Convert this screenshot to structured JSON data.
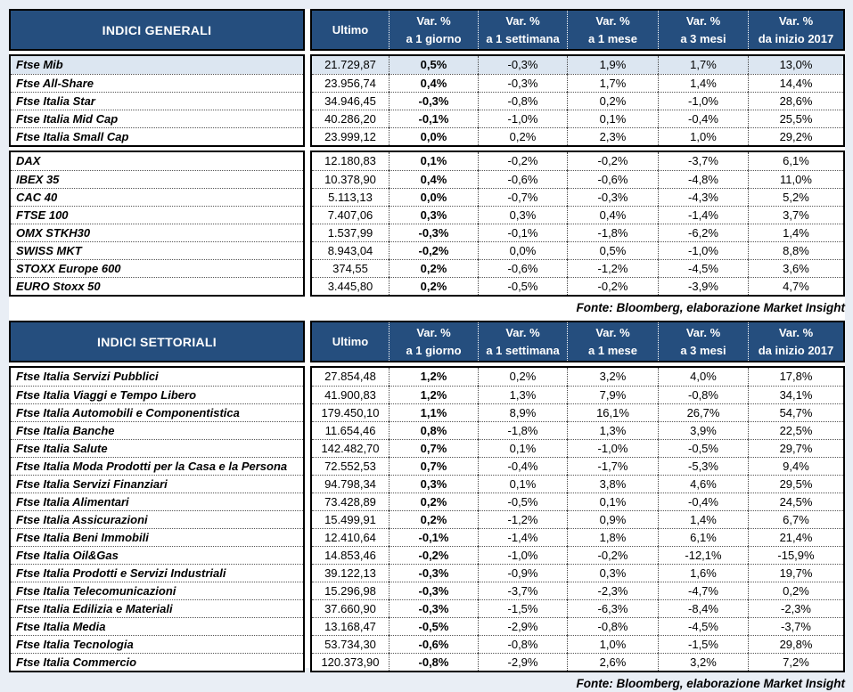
{
  "colors": {
    "header_bg": "#254e7e",
    "header_text": "#ffffff",
    "highlight_row_bg": "#dce6f1",
    "border": "#000000",
    "page_frame": "#e9eef5"
  },
  "columns": {
    "ultimo": "Ultimo",
    "var_label": "Var. %",
    "periods": [
      "a 1 giorno",
      "a 1 settimana",
      "a 1 mese",
      "a 3 mesi",
      "da inizio 2017"
    ]
  },
  "source_note": "Fonte: Bloomberg, elaborazione Market Insight",
  "general_table": {
    "title": "INDICI GENERALI",
    "groups": [
      {
        "rows": [
          {
            "name": "Ftse Mib",
            "ultimo": "21.729,87",
            "d1": "0,5%",
            "w1": "-0,3%",
            "m1": "1,9%",
            "m3": "1,7%",
            "ytd": "13,0%",
            "highlight": true
          },
          {
            "name": "Ftse All-Share",
            "ultimo": "23.956,74",
            "d1": "0,4%",
            "w1": "-0,3%",
            "m1": "1,7%",
            "m3": "1,4%",
            "ytd": "14,4%"
          },
          {
            "name": "Ftse Italia Star",
            "ultimo": "34.946,45",
            "d1": "-0,3%",
            "w1": "-0,8%",
            "m1": "0,2%",
            "m3": "-1,0%",
            "ytd": "28,6%"
          },
          {
            "name": "Ftse Italia Mid Cap",
            "ultimo": "40.286,20",
            "d1": "-0,1%",
            "w1": "-1,0%",
            "m1": "0,1%",
            "m3": "-0,4%",
            "ytd": "25,5%"
          },
          {
            "name": "Ftse Italia Small Cap",
            "ultimo": "23.999,12",
            "d1": "0,0%",
            "w1": "0,2%",
            "m1": "2,3%",
            "m3": "1,0%",
            "ytd": "29,2%"
          }
        ]
      },
      {
        "rows": [
          {
            "name": "DAX",
            "ultimo": "12.180,83",
            "d1": "0,1%",
            "w1": "-0,2%",
            "m1": "-0,2%",
            "m3": "-3,7%",
            "ytd": "6,1%"
          },
          {
            "name": "IBEX 35",
            "ultimo": "10.378,90",
            "d1": "0,4%",
            "w1": "-0,6%",
            "m1": "-0,6%",
            "m3": "-4,8%",
            "ytd": "11,0%"
          },
          {
            "name": "CAC 40",
            "ultimo": "5.113,13",
            "d1": "0,0%",
            "w1": "-0,7%",
            "m1": "-0,3%",
            "m3": "-4,3%",
            "ytd": "5,2%"
          },
          {
            "name": "FTSE 100",
            "ultimo": "7.407,06",
            "d1": "0,3%",
            "w1": "0,3%",
            "m1": "0,4%",
            "m3": "-1,4%",
            "ytd": "3,7%"
          },
          {
            "name": "OMX STKH30",
            "ultimo": "1.537,99",
            "d1": "-0,3%",
            "w1": "-0,1%",
            "m1": "-1,8%",
            "m3": "-6,2%",
            "ytd": "1,4%"
          },
          {
            "name": "SWISS MKT",
            "ultimo": "8.943,04",
            "d1": "-0,2%",
            "w1": "0,0%",
            "m1": "0,5%",
            "m3": "-1,0%",
            "ytd": "8,8%"
          },
          {
            "name": "STOXX Europe 600",
            "ultimo": "374,55",
            "d1": "0,2%",
            "w1": "-0,6%",
            "m1": "-1,2%",
            "m3": "-4,5%",
            "ytd": "3,6%"
          },
          {
            "name": "EURO Stoxx 50",
            "ultimo": "3.445,80",
            "d1": "0,2%",
            "w1": "-0,5%",
            "m1": "-0,2%",
            "m3": "-3,9%",
            "ytd": "4,7%"
          }
        ]
      }
    ]
  },
  "sector_table": {
    "title": "INDICI SETTORIALI",
    "groups": [
      {
        "rows": [
          {
            "name": "Ftse Italia Servizi Pubblici",
            "ultimo": "27.854,48",
            "d1": "1,2%",
            "w1": "0,2%",
            "m1": "3,2%",
            "m3": "4,0%",
            "ytd": "17,8%"
          },
          {
            "name": "Ftse Italia Viaggi e Tempo Libero",
            "ultimo": "41.900,83",
            "d1": "1,2%",
            "w1": "1,3%",
            "m1": "7,9%",
            "m3": "-0,8%",
            "ytd": "34,1%"
          },
          {
            "name": "Ftse Italia Automobili e Componentistica",
            "ultimo": "179.450,10",
            "d1": "1,1%",
            "w1": "8,9%",
            "m1": "16,1%",
            "m3": "26,7%",
            "ytd": "54,7%"
          },
          {
            "name": "Ftse Italia Banche",
            "ultimo": "11.654,46",
            "d1": "0,8%",
            "w1": "-1,8%",
            "m1": "1,3%",
            "m3": "3,9%",
            "ytd": "22,5%"
          },
          {
            "name": "Ftse Italia Salute",
            "ultimo": "142.482,70",
            "d1": "0,7%",
            "w1": "0,1%",
            "m1": "-1,0%",
            "m3": "-0,5%",
            "ytd": "29,7%"
          },
          {
            "name": "Ftse Italia Moda Prodotti per la Casa e la Persona",
            "ultimo": "72.552,53",
            "d1": "0,7%",
            "w1": "-0,4%",
            "m1": "-1,7%",
            "m3": "-5,3%",
            "ytd": "9,4%"
          },
          {
            "name": "Ftse Italia Servizi Finanziari",
            "ultimo": "94.798,34",
            "d1": "0,3%",
            "w1": "0,1%",
            "m1": "3,8%",
            "m3": "4,6%",
            "ytd": "29,5%"
          },
          {
            "name": "Ftse Italia Alimentari",
            "ultimo": "73.428,89",
            "d1": "0,2%",
            "w1": "-0,5%",
            "m1": "0,1%",
            "m3": "-0,4%",
            "ytd": "24,5%"
          },
          {
            "name": "Ftse Italia Assicurazioni",
            "ultimo": "15.499,91",
            "d1": "0,2%",
            "w1": "-1,2%",
            "m1": "0,9%",
            "m3": "1,4%",
            "ytd": "6,7%"
          },
          {
            "name": "Ftse Italia Beni Immobili",
            "ultimo": "12.410,64",
            "d1": "-0,1%",
            "w1": "-1,4%",
            "m1": "1,8%",
            "m3": "6,1%",
            "ytd": "21,4%"
          },
          {
            "name": "Ftse Italia Oil&Gas",
            "ultimo": "14.853,46",
            "d1": "-0,2%",
            "w1": "-1,0%",
            "m1": "-0,2%",
            "m3": "-12,1%",
            "ytd": "-15,9%"
          },
          {
            "name": "Ftse Italia Prodotti e Servizi Industriali",
            "ultimo": "39.122,13",
            "d1": "-0,3%",
            "w1": "-0,9%",
            "m1": "0,3%",
            "m3": "1,6%",
            "ytd": "19,7%"
          },
          {
            "name": "Ftse Italia Telecomunicazioni",
            "ultimo": "15.296,98",
            "d1": "-0,3%",
            "w1": "-3,7%",
            "m1": "-2,3%",
            "m3": "-4,7%",
            "ytd": "0,2%"
          },
          {
            "name": "Ftse Italia Edilizia e Materiali",
            "ultimo": "37.660,90",
            "d1": "-0,3%",
            "w1": "-1,5%",
            "m1": "-6,3%",
            "m3": "-8,4%",
            "ytd": "-2,3%"
          },
          {
            "name": "Ftse Italia Media",
            "ultimo": "13.168,47",
            "d1": "-0,5%",
            "w1": "-2,9%",
            "m1": "-0,8%",
            "m3": "-4,5%",
            "ytd": "-3,7%"
          },
          {
            "name": "Ftse Italia Tecnologia",
            "ultimo": "53.734,30",
            "d1": "-0,6%",
            "w1": "-0,8%",
            "m1": "1,0%",
            "m3": "-1,5%",
            "ytd": "29,8%"
          },
          {
            "name": "Ftse Italia Commercio",
            "ultimo": "120.373,90",
            "d1": "-0,8%",
            "w1": "-2,9%",
            "m1": "2,6%",
            "m3": "3,2%",
            "ytd": "7,2%"
          }
        ]
      }
    ]
  }
}
